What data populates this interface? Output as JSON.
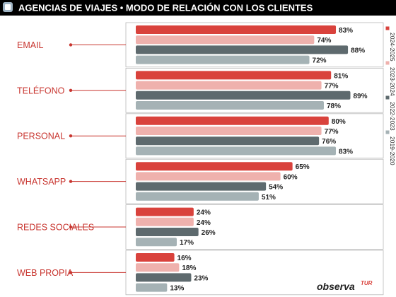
{
  "chart_data": {
    "type": "bar",
    "orientation": "horizontal",
    "title": "AGENCIAS DE VIAJES • MODO DE RELACIÓN CON LOS CLIENTES",
    "categories": [
      "EMAIL",
      "TELÉFONO",
      "PERSONAL",
      "WHATSAPP",
      "REDES SOCIALES",
      "WEB PROPIA"
    ],
    "series": [
      {
        "name": "2024-2025",
        "color": "#d9423c",
        "values": [
          83,
          81,
          80,
          65,
          24,
          16
        ],
        "labels": [
          "83%",
          "81%",
          "80%",
          "65%",
          "24%",
          "16%"
        ]
      },
      {
        "name": "2023-2024",
        "color": "#efb1ad",
        "values": [
          74,
          77,
          77,
          60,
          24,
          18
        ],
        "labels": [
          "74%",
          "77%",
          "77%",
          "60%",
          "24%",
          "18%"
        ]
      },
      {
        "name": "2022-2023",
        "color": "#5e6a6e",
        "values": [
          88,
          89,
          76,
          54,
          26,
          23
        ],
        "labels": [
          "88%",
          "89%",
          "76%",
          "54%",
          "26%",
          "23%"
        ]
      },
      {
        "name": "2019-2020",
        "color": "#a5b2b5",
        "values": [
          72,
          78,
          83,
          51,
          17,
          13
        ],
        "labels": [
          "72%",
          "78%",
          "83%",
          "51%",
          "17%",
          "13%"
        ]
      }
    ],
    "xlim": [
      0,
      100
    ],
    "legend": "right-vertical",
    "grid": false
  },
  "brand": {
    "name": "observa",
    "suffix": "TUR"
  },
  "colors": {
    "category_text": "#c8352f",
    "title_text": "#ffffff",
    "header_bg": "#000000",
    "accent": "#d9423c"
  }
}
